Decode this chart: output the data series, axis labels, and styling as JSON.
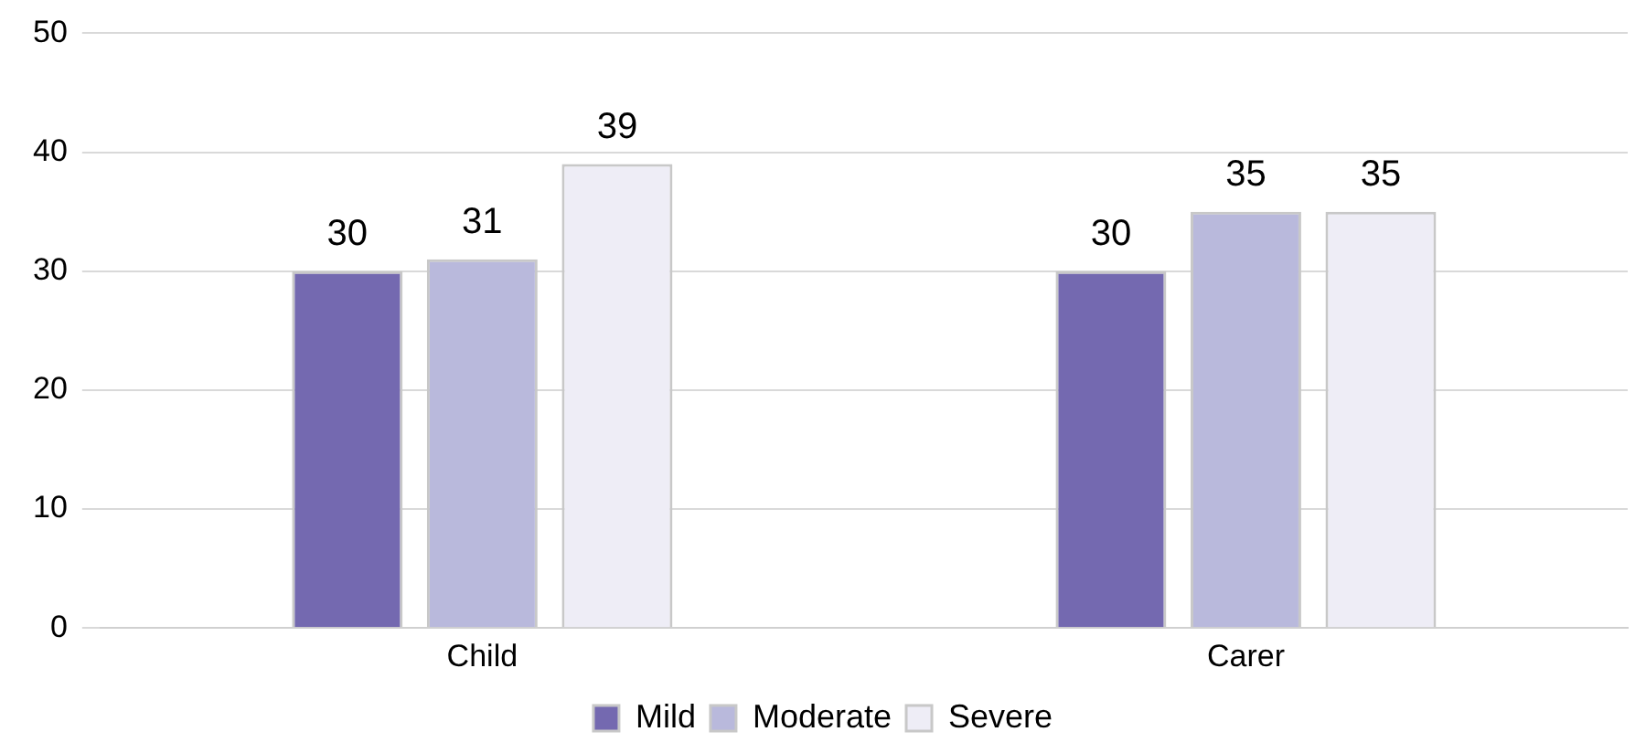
{
  "chart_data": {
    "type": "bar",
    "categories": [
      "Child",
      "Carer"
    ],
    "series": [
      {
        "name": "Mild",
        "color": "#7469b0",
        "values": [
          30,
          30
        ]
      },
      {
        "name": "Moderate",
        "color": "#b9b9dc",
        "values": [
          31,
          35
        ]
      },
      {
        "name": "Severe",
        "color": "#eeedf6",
        "values": [
          39,
          35
        ]
      }
    ],
    "ylim": [
      0,
      50
    ],
    "yticks": [
      0,
      10,
      20,
      30,
      40,
      50
    ],
    "grid": "y",
    "legend": "bottom",
    "data_labels": true
  }
}
